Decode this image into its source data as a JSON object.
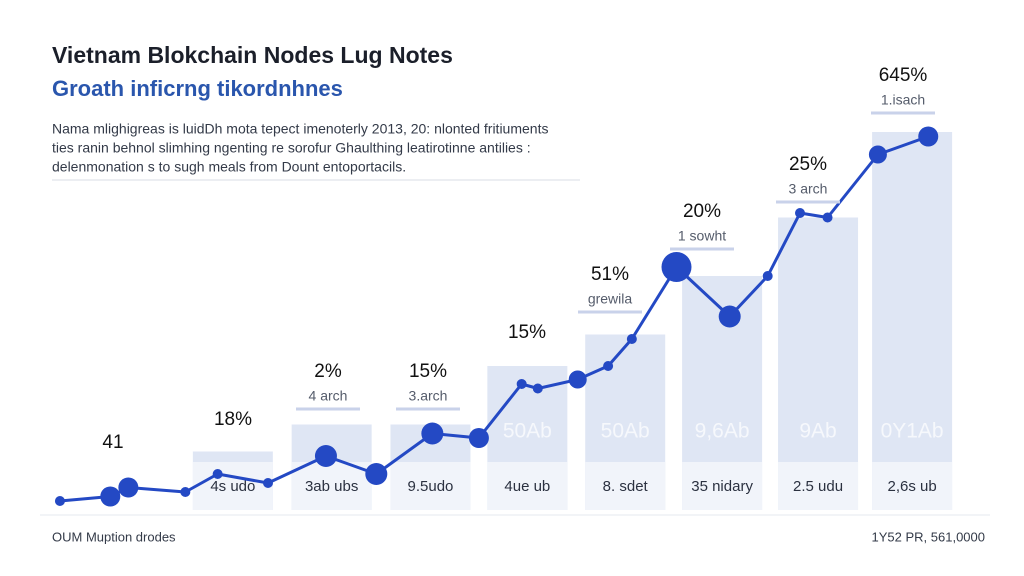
{
  "chart_data": {
    "type": "combo",
    "title": "Vietnam Blokchain Nodes Lug Notes",
    "subtitle": "Groath inficrng tikordnhnes",
    "description": [
      "Nama mlighigreas is luidDh mota tepect imenoterly 2013, 20: nlonted fritiuments",
      "ties ranin behnol slimhing ngenting re sorofur Ghaulthing leatirotinne antilies :",
      "delenmonation s to sugh meals from Dount entoportacils."
    ],
    "footer_left": "OUM Muption drodes",
    "footer_right": "1Y52 PR, 561,0000",
    "xlim": [
      0,
      100
    ],
    "ylim": [
      0,
      100
    ],
    "bars": {
      "color": "#dfe6f4",
      "x": [
        20.3,
        30.7,
        41.1,
        51.3,
        61.6,
        71.8,
        81.9,
        91.8
      ],
      "values": [
        13,
        19,
        19,
        32,
        39,
        52,
        65,
        84
      ],
      "inner_labels": [
        null,
        null,
        null,
        "50Ab",
        "50Ab",
        "9,6Ab",
        "9Ab",
        "0Y1Ab"
      ],
      "categories": [
        "4s udo",
        "3ab ubs",
        "9.5udo",
        "4ue ub",
        "8. sdet",
        "35 nidary",
        "2.5 udu",
        "2,6s ub"
      ]
    },
    "line": {
      "color": "#2449c4",
      "x": [
        2.1,
        7.4,
        9.3,
        15.3,
        18.7,
        24,
        30.1,
        35.4,
        41.3,
        46.2,
        50.7,
        52.4,
        56.6,
        59.8,
        62.3,
        67,
        72.6,
        76.6,
        80,
        82.9,
        88.2,
        93.5
      ],
      "values": [
        2,
        3,
        5,
        4,
        8,
        6,
        12,
        8,
        17,
        16,
        28,
        27,
        29,
        32,
        38,
        54,
        43,
        52,
        66,
        65,
        79,
        83
      ]
    },
    "annotations": [
      {
        "text": "41"
      },
      {
        "text": "18%"
      },
      {
        "text": "2%",
        "note": "4 arch"
      },
      {
        "text": "15%",
        "note": "3.arch"
      },
      {
        "text": "15%"
      },
      {
        "text": "51%",
        "note": "grewila"
      },
      {
        "text": "20%",
        "note": "1 sowht"
      },
      {
        "text": "25%",
        "note": "3 arch"
      },
      {
        "text": "645%",
        "note": "1.isach"
      }
    ]
  }
}
